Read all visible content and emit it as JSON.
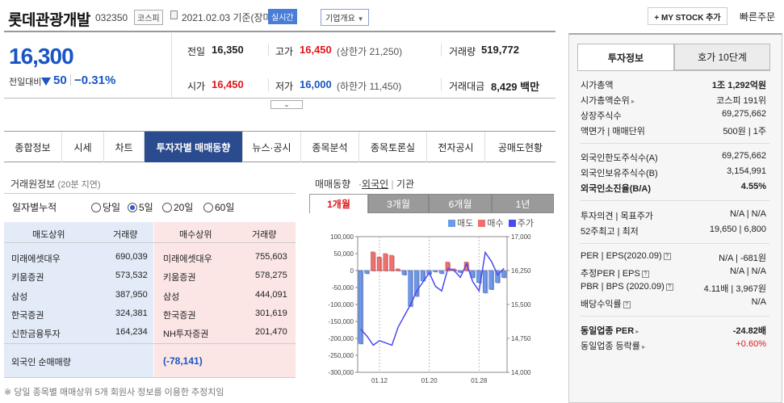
{
  "header": {
    "name": "롯데관광개발",
    "code": "032350",
    "market": "코스피",
    "date": "2021.02.03",
    "basis": "기준(장마감)",
    "realtime": "실시간",
    "company_overview": "기업개요",
    "mystock": "+ MY STOCK 추가",
    "quick_order": "빠른주문"
  },
  "price": {
    "current": "16,300",
    "change_label": "전일대비",
    "change_amount": "50",
    "change_pct": "−0.31%"
  },
  "quote": {
    "prev_label": "전일",
    "prev": "16,350",
    "high_label": "고가",
    "high": "16,450",
    "upper_label": "(상한가",
    "upper": "21,250)",
    "volume_label": "거래량",
    "volume": "519,772",
    "open_label": "시가",
    "open": "16,450",
    "low_label": "저가",
    "low": "16,000",
    "lower_label": "(하한가",
    "lower": "11,450)",
    "amount_label": "거래대금",
    "amount": "8,429",
    "amount_unit": "백만"
  },
  "tabs": [
    "종합정보",
    "시세",
    "차트",
    "투자자별 매매동향",
    "뉴스·공시",
    "종목분석",
    "종목토론실",
    "전자공시",
    "공매도현황"
  ],
  "trading": {
    "title": "거래원정보",
    "delay": "(20분 지연)",
    "period_label": "일자별누적",
    "options": [
      "당일",
      "5일",
      "20일",
      "60일"
    ],
    "sell_header": "매도상위",
    "buy_header": "매수상위",
    "vol_header": "거래량",
    "rows": [
      {
        "sell": "미래에셋대우",
        "sell_vol": "690,039",
        "buy": "미래에셋대우",
        "buy_vol": "755,603"
      },
      {
        "sell": "키움증권",
        "sell_vol": "573,532",
        "buy": "키움증권",
        "buy_vol": "578,275"
      },
      {
        "sell": "삼성",
        "sell_vol": "387,950",
        "buy": "삼성",
        "buy_vol": "444,091"
      },
      {
        "sell": "한국증권",
        "sell_vol": "324,381",
        "buy": "한국증권",
        "buy_vol": "301,619"
      },
      {
        "sell": "신한금융투자",
        "sell_vol": "164,234",
        "buy": "NH투자증권",
        "buy_vol": "201,470"
      }
    ],
    "foreign_label": "외국인 순매매량",
    "foreign_value": "(-78,141)",
    "footnote": "※ 당일 종목별 매매상위 5개 회원사 정보를 이용한 추정치임"
  },
  "chart_section": {
    "title": "매매동향",
    "tab_foreign": "외국인",
    "tab_inst": "기관",
    "periods": [
      "1개월",
      "3개월",
      "6개월",
      "1년"
    ],
    "legend": [
      "매도",
      "매수",
      "주가"
    ]
  },
  "chart_data": {
    "type": "bar",
    "left_ticks": [
      "100,000",
      "50,000",
      "0",
      "-50,000",
      "-100,000",
      "-150,000",
      "-200,000",
      "-250,000",
      "-300,000"
    ],
    "right_ticks": [
      "17,000",
      "16,250",
      "15,500",
      "14,750",
      "14,000"
    ],
    "x_ticks": [
      "01.12",
      "01.20",
      "01.28"
    ],
    "ylim_left": [
      -300000,
      100000
    ],
    "ylim_right": [
      14000,
      17000
    ],
    "net_volume": [
      -215000,
      -8000,
      55000,
      40000,
      50000,
      45000,
      5000,
      -12000,
      -105000,
      -75000,
      -30000,
      -10000,
      -3000,
      -8000,
      25000,
      5000,
      -5000,
      25000,
      -20000,
      -35000,
      -65000,
      -55000,
      -35000,
      -20000
    ],
    "price": [
      14950,
      14800,
      14600,
      14700,
      14650,
      14600,
      15000,
      15250,
      15500,
      15800,
      16000,
      16200,
      15900,
      15800,
      16300,
      16250,
      16100,
      16400,
      16000,
      15800,
      16650,
      16450,
      16150,
      16300
    ],
    "series": [
      {
        "name": "매도"
      },
      {
        "name": "매수"
      },
      {
        "name": "주가"
      }
    ]
  },
  "invest": {
    "tab1": "투자정보",
    "tab2": "호가 10단계",
    "market_cap_label": "시가총액",
    "market_cap": "1조 1,292",
    "market_cap_unit": "억원",
    "rank_label": "시가총액순위",
    "rank": "코스피 191위",
    "shares_label": "상장주식수",
    "shares": "69,275,662",
    "par_label": "액면가 | 매매단위",
    "par": "500원 | 1주",
    "f_limit_label": "외국인한도주식수(A)",
    "f_limit": "69,275,662",
    "f_hold_label": "외국인보유주식수(B)",
    "f_hold": "3,154,991",
    "f_ratio_label": "외국인소진율(B/A)",
    "f_ratio": "4.55%",
    "opinion_label": "투자의견 | 목표주가",
    "opinion": "N/A | N/A",
    "w52_label": "52주최고 | 최저",
    "w52": "19,650 | 6,800",
    "per_label": "PER | EPS(2020.09)",
    "per": "N/A | -681원",
    "est_label": "추정PER | EPS",
    "est": "N/A | N/A",
    "pbr_label": "PBR | BPS (2020.09)",
    "pbr": "4.11배 | 3,967원",
    "div_label": "배당수익률",
    "div": "N/A",
    "ind_per_label": "동일업종 PER",
    "ind_per": "-24.82배",
    "ind_chg_label": "동일업종 등락률",
    "ind_chg": "+0.60%"
  }
}
